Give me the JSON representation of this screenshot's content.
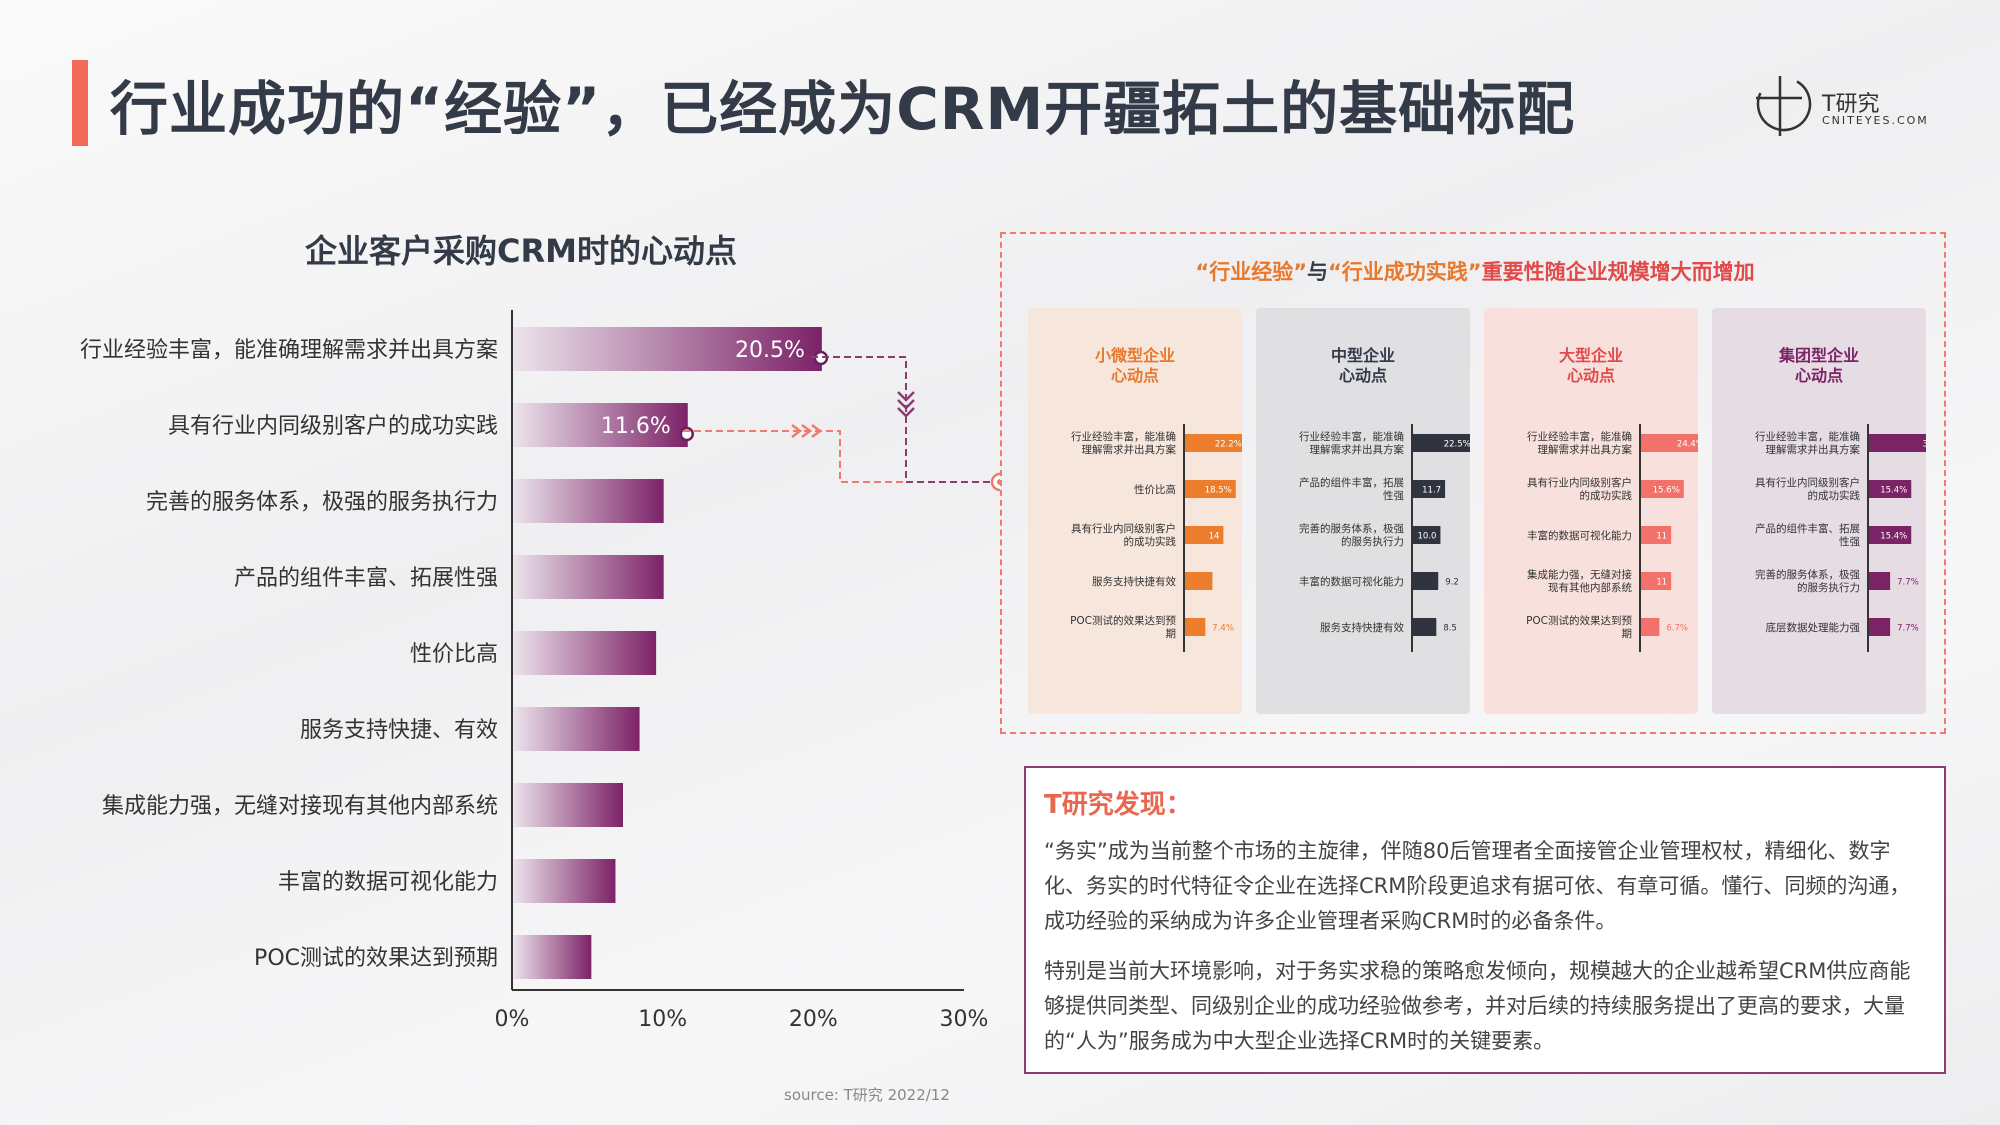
{
  "page": {
    "title": "行业成功的“经验”，已经成为CRM开疆拓土的基础标配",
    "logo_name": "T研究",
    "logo_sub": "CNITEYES.COM",
    "source": "source:   T研究 2022/12"
  },
  "chart_data": [
    {
      "type": "bar",
      "orientation": "horizontal",
      "title": "企业客户采购CRM时的心动点",
      "categories": [
        "行业经验丰富，能准确理解需求并出具方案",
        "具有行业内同级别客户的成功实践",
        "完善的服务体系，极强的服务执行力",
        "产品的组件丰富、拓展性强",
        "性价比高",
        "服务支持快捷、有效",
        "集成能力强，无缝对接现有其他内部系统",
        "丰富的数据可视化能力",
        "POC测试的效果达到预期"
      ],
      "values": [
        20.5,
        11.6,
        10.0,
        10.0,
        9.5,
        8.4,
        7.3,
        6.8,
        5.2
      ],
      "labels": [
        "20.5%",
        "11.6%",
        "",
        "",
        "",
        "",
        "",
        "",
        ""
      ],
      "xlim": [
        0,
        30
      ],
      "ticks": [
        "0%",
        "10%",
        "20%",
        "30%"
      ],
      "colors": {
        "start": "#ece4ec",
        "end": "#7c2267"
      }
    },
    {
      "type": "bar",
      "orientation": "horizontal",
      "title": "小微型企业\n心动点",
      "categories": [
        "行业经验丰富，能准确\n理解需求并出具方案",
        "性价比高",
        "具有行业内同级别客户\n的成功实践",
        "服务支持快捷有效",
        "POC测试的效果达到预\n期"
      ],
      "values": [
        22.2,
        18.5,
        14,
        10,
        7.4
      ],
      "labels": [
        "22.2%",
        "18.5%",
        "14",
        "",
        "7.4%"
      ],
      "xlim": [
        0,
        35
      ],
      "color": "#ec7d2d",
      "bg": "#f6e6dc",
      "title_color": "#e8792c"
    },
    {
      "type": "bar",
      "orientation": "horizontal",
      "title": "中型企业\n心动点",
      "categories": [
        "行业经验丰富，能准确\n理解需求并出具方案",
        "产品的组件丰富，拓展\n性强",
        "完善的服务体系，极强\n的服务执行力",
        "丰富的数据可视化能力",
        "服务支持快捷有效"
      ],
      "values": [
        22.5,
        11.7,
        10.0,
        9.2,
        8.5
      ],
      "labels": [
        "22.5%",
        "11.7",
        "10.0",
        "9.2",
        "8.5"
      ],
      "xlim": [
        0,
        35
      ],
      "color": "#2f3440",
      "bg": "#e0e0e2",
      "title_color": "#333a48"
    },
    {
      "type": "bar",
      "orientation": "horizontal",
      "title": "大型企业\n心动点",
      "categories": [
        "行业经验丰富，能准确\n理解需求并出具方案",
        "具有行业内同级别客户\n的成功实践",
        "丰富的数据可视化能力",
        "集成能力强，无缝对接\n现有其他内部系统",
        "POC测试的效果达到预\n期"
      ],
      "values": [
        24.4,
        15.6,
        11,
        11,
        6.7
      ],
      "labels": [
        "24.4%",
        "15.6%",
        "11",
        "11",
        "6.7%"
      ],
      "xlim": [
        0,
        35
      ],
      "color": "#f2716a",
      "bg": "#f8e0dc",
      "title_color": "#e24a4a"
    },
    {
      "type": "bar",
      "orientation": "horizontal",
      "title": "集团型企业\n心动点",
      "categories": [
        "行业经验丰富，能准确\n理解需求并出具方案",
        "具有行业内同级别客户\n的成功实践",
        "产品的组件丰富、拓展\n性强",
        "完善的服务体系，极强\n的服务执行力",
        "底层数据处理能力强"
      ],
      "values": [
        30.8,
        15.4,
        15.4,
        7.7,
        7.7
      ],
      "labels": [
        "30.8%",
        "15.4%",
        "15.4%",
        "7.7%",
        "7.7%"
      ],
      "xlim": [
        0,
        35
      ],
      "color": "#7c2267",
      "bg": "#e6dce4",
      "title_color": "#7c2267"
    }
  ],
  "panel": {
    "title_part1": "“行业经验”",
    "title_part2": "与",
    "title_part3": "“行业成功实践”",
    "title_part4": "重要性随企业规模增大而增加"
  },
  "findings": {
    "title": "T研究发现：",
    "p1": "“务实”成为当前整个市场的主旋律，伴随80后管理者全面接管企业管理权杖，精细化、数字化、务实的时代特征令企业在选择CRM阶段更追求有据可依、有章可循。懂行、同频的沟通，成功经验的采纳成为许多企业管理者采购CRM时的必备条件。",
    "p2": "特别是当前大环境影响，对于务实求稳的策略愈发倾向，规模越大的企业越希望CRM供应商能够提供同类型、同级别企业的成功经验做参考，并对后续的持续服务提出了更高的要求，大量的“人为”服务成为中大型企业选择CRM时的关键要素。"
  }
}
